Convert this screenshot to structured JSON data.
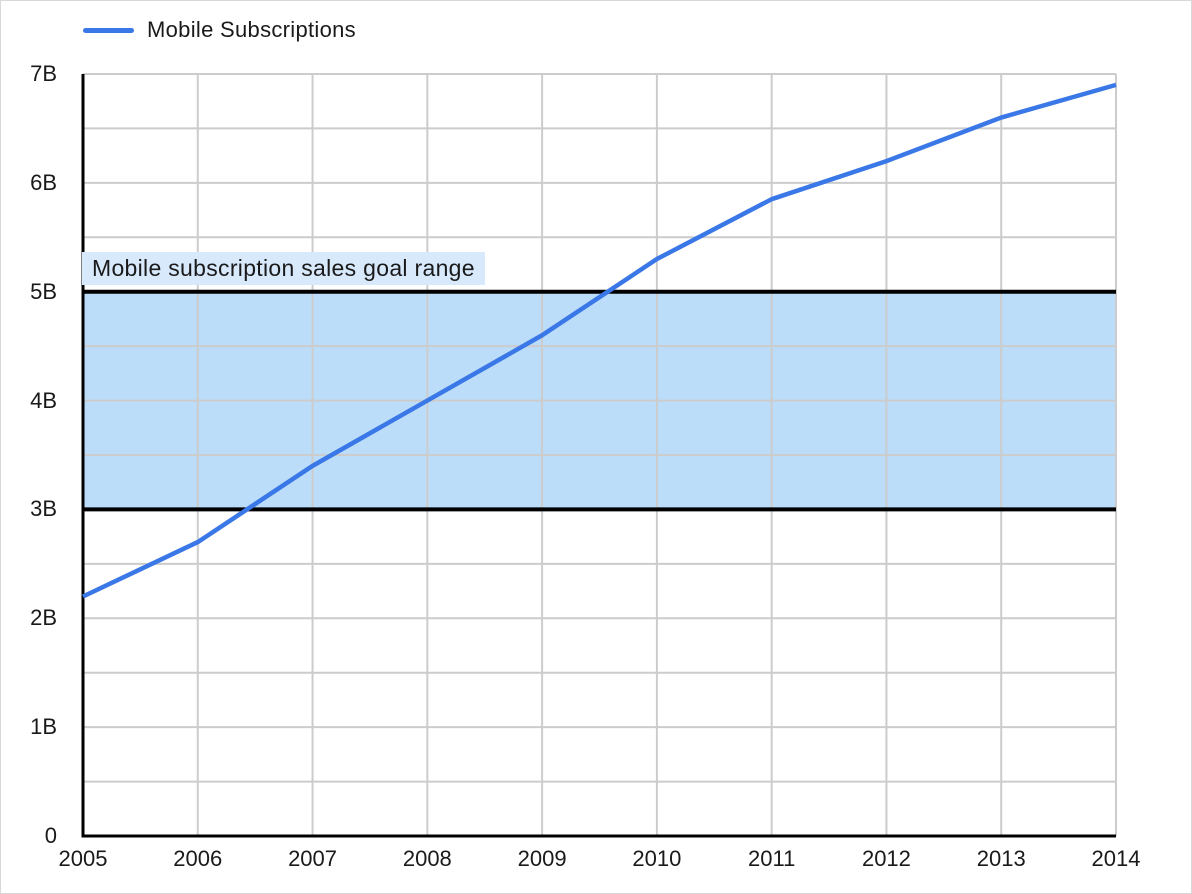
{
  "legend": {
    "items": [
      {
        "label": "Mobile Subscriptions",
        "color": "#3b78e7"
      }
    ]
  },
  "colors": {
    "series_line": "#3b78e7",
    "band_fill": "#bbddfa",
    "band_border": "#000000",
    "band_label_bg": "#d8e9fc",
    "gridline": "#cccccc",
    "axis": "#000000",
    "text": "#1a1a1a"
  },
  "chart_data": {
    "type": "line",
    "title": "",
    "xlabel": "",
    "ylabel": "",
    "x": [
      2005,
      2006,
      2007,
      2008,
      2009,
      2010,
      2011,
      2012,
      2013,
      2014
    ],
    "series": [
      {
        "name": "Mobile Subscriptions",
        "values": [
          2.2,
          2.7,
          3.4,
          4.0,
          4.6,
          5.3,
          5.85,
          6.2,
          6.6,
          6.9
        ],
        "color": "#3b78e7"
      }
    ],
    "band": {
      "label": "Mobile subscription sales goal range",
      "from": 3,
      "to": 5,
      "fill": "#bbddfa",
      "border_color": "#000000"
    },
    "ylim": [
      0,
      7
    ],
    "grid_step": 0.5,
    "grid": true,
    "legend_position": "top-left",
    "y_ticks": [
      {
        "v": 0,
        "label": "0"
      },
      {
        "v": 1,
        "label": "1B"
      },
      {
        "v": 2,
        "label": "2B"
      },
      {
        "v": 3,
        "label": "3B"
      },
      {
        "v": 4,
        "label": "4B"
      },
      {
        "v": 5,
        "label": "5B"
      },
      {
        "v": 6,
        "label": "6B"
      },
      {
        "v": 7,
        "label": "7B"
      }
    ],
    "x_ticks": [
      "2005",
      "2006",
      "2007",
      "2008",
      "2009",
      "2010",
      "2011",
      "2012",
      "2013",
      "2014"
    ]
  }
}
